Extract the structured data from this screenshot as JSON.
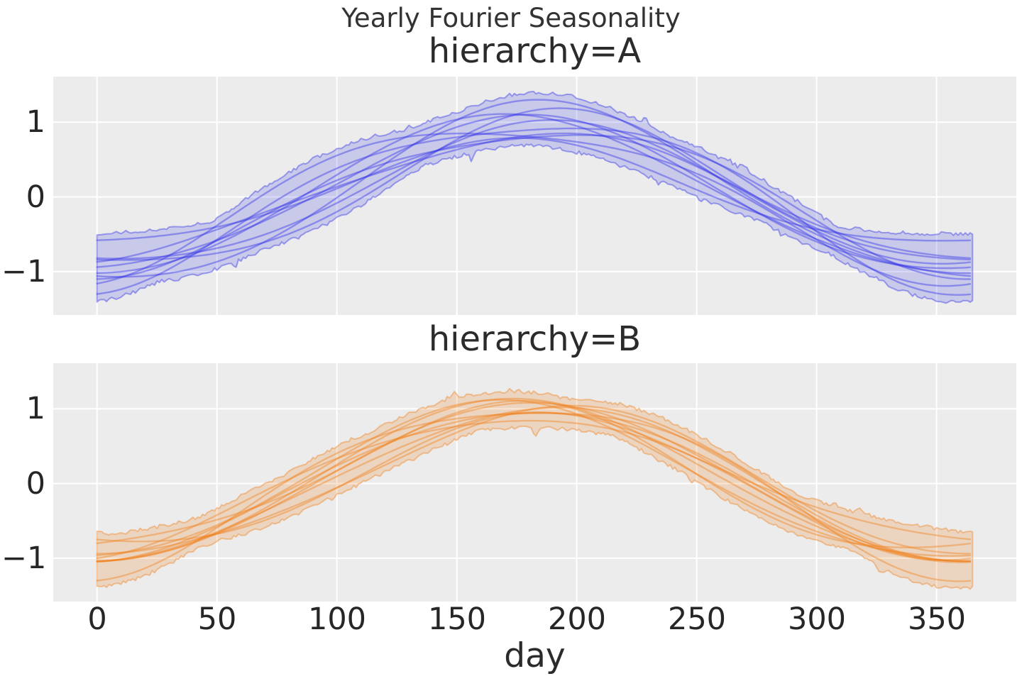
{
  "figure": {
    "background": "#ffffff",
    "plot_background": "#ececec",
    "grid_color": "#ffffff",
    "text_color": "#262626"
  },
  "chart_data": {
    "type": "line",
    "title": "Yearly Fourier Seasonality",
    "xlabel": "day",
    "ylabel": "",
    "grid": true,
    "legend": "none",
    "x_ticks": [
      0,
      50,
      100,
      150,
      200,
      250,
      300,
      350
    ],
    "y_ticks": [
      1,
      0,
      -1
    ],
    "xlim": [
      -18.25,
      383.25
    ],
    "ylim": [
      -1.58,
      1.61
    ],
    "x_range_days": [
      0,
      365
    ],
    "period_days": 365,
    "panels": [
      {
        "label": "hierarchy=A",
        "line_color": "#3333e6",
        "line_alpha": 0.42,
        "fill_alpha": 0.19,
        "band_margin": 0.07,
        "band_noise_amp": 0.05,
        "seed": 11,
        "curves": [
          {
            "a1": 0.1,
            "b1": -1.02,
            "a2": 0.02,
            "b2": 0.08
          },
          {
            "a1": -0.05,
            "b1": -0.95,
            "a2": 0.05,
            "b2": -0.15
          },
          {
            "a1": 0.1,
            "b1": -0.68,
            "a2": -0.02,
            "b2": 0.1
          },
          {
            "a1": 0.05,
            "b1": -1.1,
            "a2": 0.08,
            "b2": -0.2
          },
          {
            "a1": -0.12,
            "b1": -0.92,
            "a2": 0.02,
            "b2": 0.1
          },
          {
            "a1": 0.15,
            "b1": -1.05,
            "a2": -0.06,
            "b2": 0.03
          },
          {
            "a1": 0.02,
            "b1": -0.85,
            "a2": 0.1,
            "b2": -0.02
          },
          {
            "a1": -0.08,
            "b1": -1.18,
            "a2": -0.02,
            "b2": 0.12
          },
          {
            "a1": 0.25,
            "b1": -0.98,
            "a2": 0.04,
            "b2": -0.18
          },
          {
            "a1": -0.18,
            "b1": -1.0,
            "a2": 0.06,
            "b2": 0.16
          }
        ],
        "mean_approx": {
          "day": [
            0,
            30,
            60,
            90,
            120,
            150,
            180,
            210,
            240,
            270,
            300,
            330,
            365
          ],
          "value": [
            -1.0,
            -0.92,
            -0.62,
            -0.2,
            0.3,
            0.75,
            1.0,
            0.97,
            0.65,
            0.15,
            -0.38,
            -0.8,
            -1.0
          ]
        },
        "band_approx": {
          "day": [
            0,
            90,
            180,
            270,
            365
          ],
          "upper": [
            -0.55,
            0.35,
            1.45,
            0.45,
            -0.58
          ],
          "lower": [
            -1.42,
            -0.75,
            0.52,
            -0.65,
            -1.42
          ]
        }
      },
      {
        "label": "hierarchy=B",
        "line_color": "#f07d16",
        "line_alpha": 0.4,
        "fill_alpha": 0.2,
        "band_margin": 0.07,
        "band_noise_amp": 0.05,
        "seed": 23,
        "curves": [
          {
            "a1": 0.05,
            "b1": -1.0,
            "a2": 0.03,
            "b2": -0.05
          },
          {
            "a1": 0.12,
            "b1": -1.08,
            "a2": -0.04,
            "b2": 0.04
          },
          {
            "a1": -0.06,
            "b1": -1.02,
            "a2": 0.06,
            "b2": -0.02
          },
          {
            "a1": 0.18,
            "b1": -0.95,
            "a2": 0.02,
            "b2": 0.15
          },
          {
            "a1": -0.1,
            "b1": -0.85,
            "a2": -0.03,
            "b2": 0.1
          },
          {
            "a1": 0.08,
            "b1": -1.12,
            "a2": 0.05,
            "b2": -0.18
          },
          {
            "a1": 0.22,
            "b1": -1.02,
            "a2": -0.05,
            "b2": 0.06
          },
          {
            "a1": -0.15,
            "b1": -0.97,
            "a2": 0.08,
            "b2": 0.03
          },
          {
            "a1": 0.03,
            "b1": -1.06,
            "a2": 0.0,
            "b2": 0.02
          },
          {
            "a1": 0.14,
            "b1": -0.92,
            "a2": 0.06,
            "b2": -0.08
          }
        ],
        "mean_approx": {
          "day": [
            0,
            30,
            60,
            90,
            120,
            150,
            180,
            210,
            240,
            270,
            300,
            330,
            365
          ],
          "value": [
            -1.02,
            -0.95,
            -0.65,
            -0.22,
            0.28,
            0.73,
            1.0,
            0.95,
            0.6,
            0.1,
            -0.45,
            -0.85,
            -1.02
          ]
        },
        "band_approx": {
          "day": [
            0,
            90,
            180,
            270,
            365
          ],
          "upper": [
            -0.66,
            0.3,
            1.44,
            0.4,
            -0.6
          ],
          "lower": [
            -1.43,
            -0.8,
            0.5,
            -0.7,
            -1.45
          ]
        }
      }
    ]
  }
}
